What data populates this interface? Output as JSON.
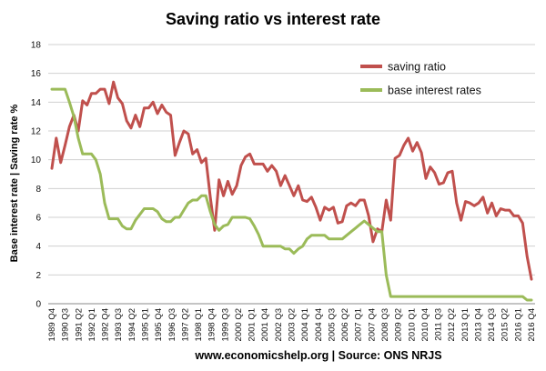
{
  "chart_data": {
    "type": "line",
    "title": "Saving ratio vs interest rate",
    "ylabel": "Base interest rate  |  Saving rate %",
    "xlabel": "",
    "source": "www.economicshelp.org | Source: ONS NRJS",
    "ylim": [
      0,
      18
    ],
    "yticks": [
      "0",
      "2",
      "4",
      "6",
      "8",
      "10",
      "12",
      "14",
      "16",
      "18"
    ],
    "grid": "horizontal",
    "legend_position": "top-right",
    "x_tick_labels": [
      "1989 Q4",
      "1990 Q3",
      "1991 Q2",
      "1992 Q1",
      "1992 Q4",
      "1993 Q3",
      "1994 Q2",
      "1995 Q1",
      "1995 Q4",
      "1996 Q3",
      "1997 Q2",
      "1998 Q1",
      "1998 Q4",
      "1999 Q3",
      "2000 Q2",
      "2001 Q1",
      "2001 Q4",
      "2002 Q3",
      "2003 Q2",
      "2004 Q1",
      "2004 Q4",
      "2005 Q3",
      "2006 Q2",
      "2007 Q1",
      "2007 Q4",
      "2008 Q3",
      "2009 Q2",
      "2010 Q1",
      "2010 Q4",
      "2011 Q3",
      "2012 Q2",
      "2013 Q1",
      "2013 Q4",
      "2014 Q3",
      "2015 Q2",
      "2016 Q1",
      "2016 Q4"
    ],
    "series": [
      {
        "name": "saving ratio",
        "color": "#c0504d",
        "values": [
          9.4,
          11.5,
          9.8,
          11.0,
          12.3,
          13.1,
          12.0,
          14.1,
          13.8,
          14.6,
          14.6,
          14.9,
          14.9,
          13.9,
          15.4,
          14.3,
          13.9,
          12.7,
          12.2,
          13.1,
          12.3,
          13.6,
          13.6,
          14.0,
          13.2,
          13.8,
          13.3,
          13.1,
          10.3,
          11.2,
          12.0,
          11.8,
          10.4,
          10.7,
          9.8,
          10.1,
          7.4,
          5.1,
          8.6,
          7.5,
          8.5,
          7.6,
          8.2,
          9.6,
          10.2,
          10.4,
          9.7,
          9.7,
          9.7,
          9.2,
          9.6,
          9.2,
          8.2,
          8.9,
          8.2,
          7.5,
          8.2,
          7.2,
          7.1,
          7.4,
          6.7,
          5.8,
          6.7,
          6.5,
          6.7,
          5.6,
          5.7,
          6.8,
          7.0,
          6.8,
          7.2,
          7.2,
          6.1,
          4.3,
          5.2,
          5.0,
          7.2,
          5.8,
          10.1,
          10.3,
          11.0,
          11.5,
          10.6,
          11.2,
          10.5,
          8.7,
          9.5,
          9.1,
          8.3,
          8.4,
          9.1,
          9.2,
          7.0,
          5.8,
          7.1,
          7.0,
          6.8,
          7.0,
          7.4,
          6.3,
          7.0,
          6.1,
          6.6,
          6.5,
          6.5,
          6.1,
          6.1,
          5.6,
          3.3,
          1.7
        ]
      },
      {
        "name": "base interest rates",
        "color": "#9bbb59",
        "values": [
          14.9,
          14.9,
          14.9,
          14.9,
          14.0,
          13.0,
          11.5,
          10.4,
          10.4,
          10.4,
          10.0,
          9.0,
          7.0,
          5.9,
          5.9,
          5.9,
          5.4,
          5.2,
          5.2,
          5.8,
          6.2,
          6.6,
          6.6,
          6.6,
          6.4,
          5.9,
          5.7,
          5.7,
          6.0,
          6.0,
          6.5,
          7.0,
          7.2,
          7.2,
          7.5,
          7.5,
          6.4,
          5.5,
          5.1,
          5.4,
          5.5,
          6.0,
          6.0,
          6.0,
          6.0,
          5.9,
          5.4,
          4.8,
          4.0,
          4.0,
          4.0,
          4.0,
          4.0,
          3.8,
          3.8,
          3.5,
          3.8,
          4.0,
          4.5,
          4.75,
          4.75,
          4.75,
          4.75,
          4.5,
          4.5,
          4.5,
          4.5,
          4.75,
          5.0,
          5.25,
          5.5,
          5.75,
          5.5,
          5.25,
          5.0,
          5.0,
          2.0,
          0.5,
          0.5,
          0.5,
          0.5,
          0.5,
          0.5,
          0.5,
          0.5,
          0.5,
          0.5,
          0.5,
          0.5,
          0.5,
          0.5,
          0.5,
          0.5,
          0.5,
          0.5,
          0.5,
          0.5,
          0.5,
          0.5,
          0.5,
          0.5,
          0.5,
          0.5,
          0.5,
          0.5,
          0.5,
          0.5,
          0.5,
          0.25,
          0.25
        ]
      }
    ]
  }
}
